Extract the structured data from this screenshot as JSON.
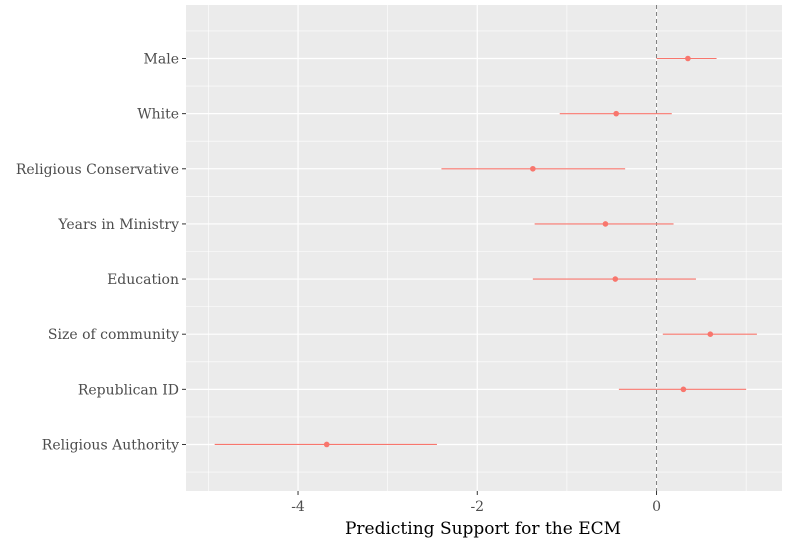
{
  "chart_data": {
    "type": "scatter",
    "subtype": "coefficient-plot-with-intervals",
    "title": "",
    "xlabel": "Predicting Support for the ECM",
    "ylabel": "",
    "xlim": [
      -5.25,
      1.4
    ],
    "x_ticks": [
      -4,
      -2,
      0
    ],
    "x_tick_labels": [
      "-4",
      "-2",
      "0"
    ],
    "reference_line_x": 0,
    "grid": true,
    "legend": "none",
    "categories": [
      "Male",
      "White",
      "Religious Conservative",
      "Years in Ministry",
      "Education",
      "Size of community",
      "Republican ID",
      "Religious Authority"
    ],
    "estimates": [
      0.35,
      -0.45,
      -1.38,
      -0.57,
      -0.46,
      0.6,
      0.3,
      -3.68
    ],
    "lower": [
      0.0,
      -1.08,
      -2.4,
      -1.36,
      -1.38,
      0.07,
      -0.42,
      -4.93
    ],
    "upper": [
      0.67,
      0.17,
      -0.35,
      0.19,
      0.44,
      1.12,
      1.0,
      -2.45
    ],
    "colors": {
      "panel_background": "#ebebeb",
      "grid": "#ffffff",
      "series": "#f8766d",
      "reference_line": "#7f7f7f"
    }
  }
}
